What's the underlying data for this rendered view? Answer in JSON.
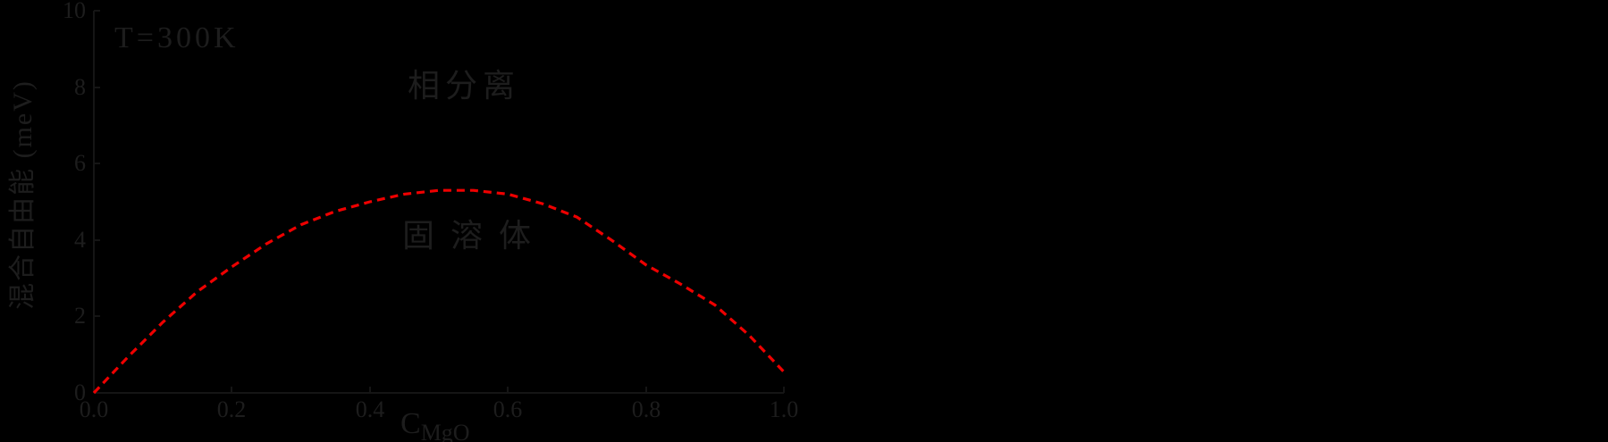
{
  "figure": {
    "background_color": "#000000",
    "axis_color": "#151515",
    "text_color": "#1d1d1d",
    "curve_color": "#ee0000",
    "temperature_label": "T=300K",
    "annotations": {
      "upper": "相分离",
      "lower": "固溶体"
    },
    "xlabel": {
      "base": "C",
      "subscript": "MgO"
    },
    "ylabel": "混合自由能 (meV)"
  },
  "chart_data": {
    "type": "line",
    "title": "T=300K",
    "xlabel": "C_MgO",
    "ylabel": "混合自由能 (meV)",
    "xlim": [
      0.0,
      1.0
    ],
    "ylim": [
      0,
      10
    ],
    "xticks": [
      "0.0",
      "0.2",
      "0.4",
      "0.6",
      "0.8",
      "1.0"
    ],
    "yticks_top_to_bottom": [
      "10",
      "8",
      "6",
      "4",
      "2",
      "0"
    ],
    "grid": false,
    "legend": "none",
    "annotations": [
      {
        "text": "T=300K",
        "x": 0.07,
        "y": 9.4
      },
      {
        "text": "相分离",
        "x": 0.47,
        "y": 8.0
      },
      {
        "text": "固溶体",
        "x": 0.46,
        "y": 4.1
      }
    ],
    "series": [
      {
        "name": "mixing-free-energy-curve",
        "style": "dashed",
        "color": "#ee0000",
        "x": [
          0.0,
          0.05,
          0.1,
          0.15,
          0.2,
          0.25,
          0.3,
          0.35,
          0.4,
          0.45,
          0.5,
          0.55,
          0.6,
          0.65,
          0.7,
          0.75,
          0.8,
          0.85,
          0.9,
          0.95,
          1.0
        ],
        "y": [
          0.0,
          0.95,
          1.85,
          2.65,
          3.3,
          3.9,
          4.4,
          4.75,
          5.0,
          5.2,
          5.3,
          5.3,
          5.2,
          4.95,
          4.6,
          4.0,
          3.35,
          2.85,
          2.3,
          1.5,
          0.55
        ]
      }
    ]
  }
}
